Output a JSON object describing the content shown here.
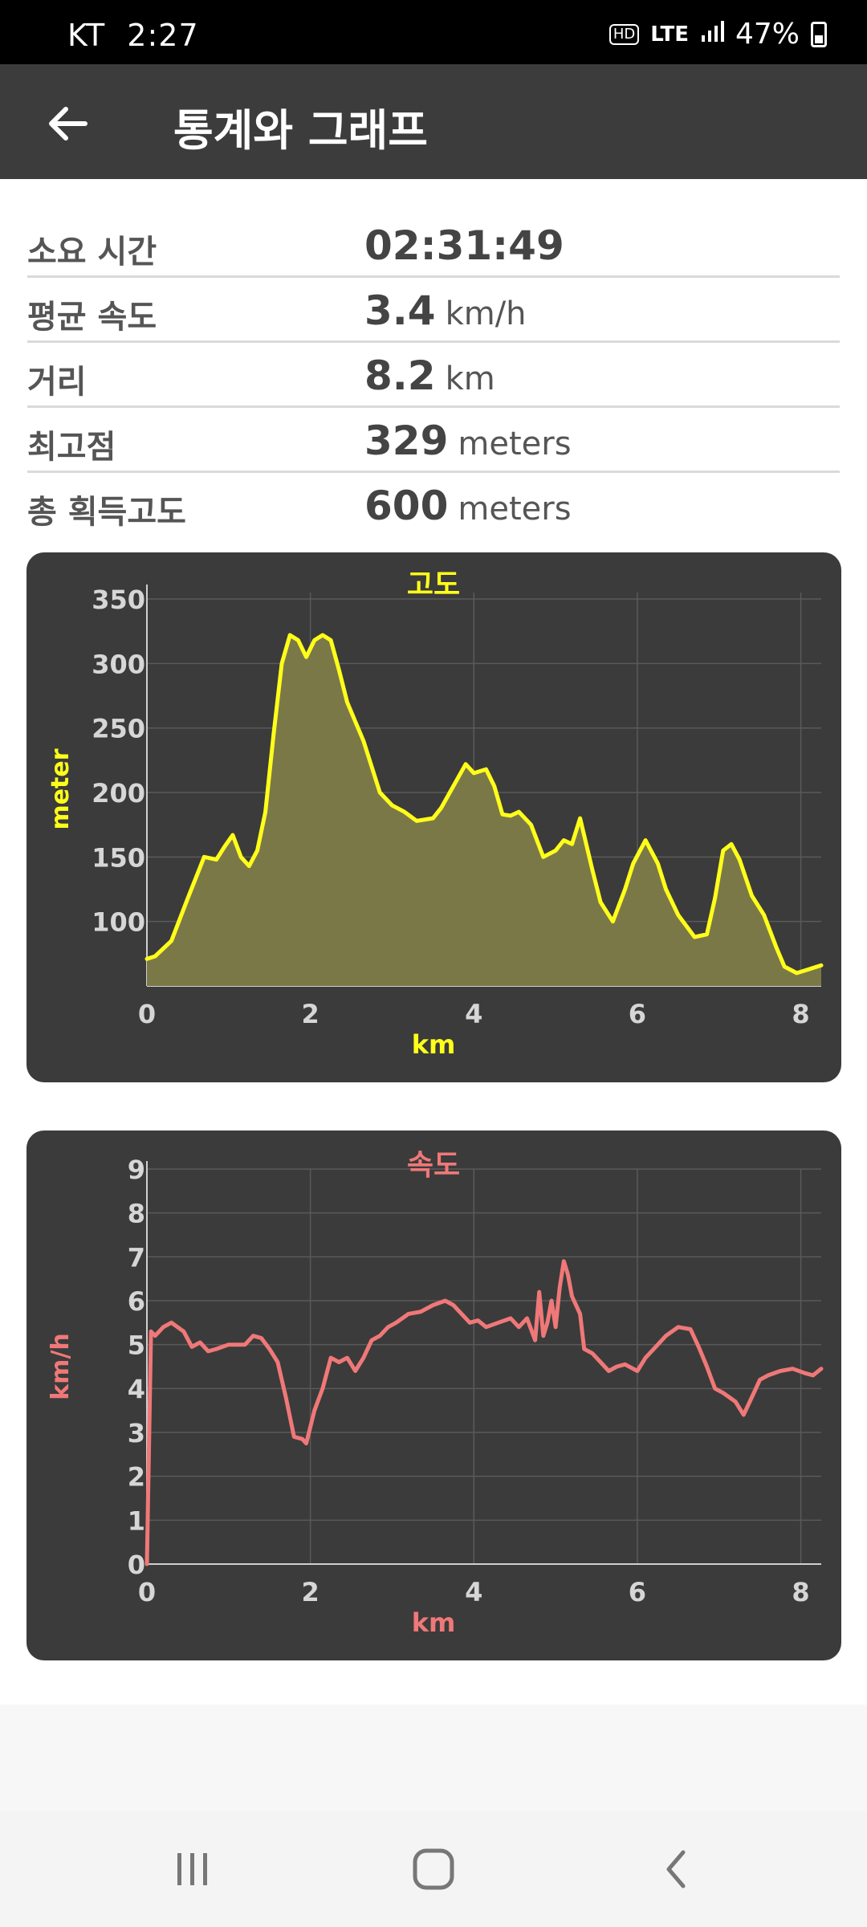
{
  "status_bar": {
    "carrier": "KT",
    "time": "2:27",
    "hd": "HD",
    "network": "LTE",
    "battery": "47%"
  },
  "header": {
    "title": "통계와 그래프"
  },
  "stats": [
    {
      "label": "소요 시간",
      "value": "02:31:49",
      "unit": ""
    },
    {
      "label": "평균 속도",
      "value": "3.4",
      "unit": "km/h"
    },
    {
      "label": "거리",
      "value": "8.2",
      "unit": "km"
    },
    {
      "label": "최고점",
      "value": "329",
      "unit": "meters"
    },
    {
      "label": "총 획득고도",
      "value": "600",
      "unit": "meters"
    }
  ],
  "chart_data": [
    {
      "type": "area",
      "title": "고도",
      "xlabel": "km",
      "ylabel": "meter",
      "xlim": [
        0,
        8.25
      ],
      "ylim": [
        50,
        355
      ],
      "xticks": [
        0,
        2,
        4,
        6,
        8
      ],
      "yticks": [
        100,
        150,
        200,
        250,
        300,
        350
      ],
      "grid": true,
      "color": "#ffff1a",
      "fill": "#7b7848",
      "x": [
        0,
        0.1,
        0.3,
        0.5,
        0.7,
        0.85,
        0.95,
        1.05,
        1.15,
        1.25,
        1.35,
        1.45,
        1.55,
        1.65,
        1.75,
        1.85,
        1.95,
        2.05,
        2.15,
        2.25,
        2.35,
        2.45,
        2.55,
        2.65,
        2.75,
        2.85,
        3.0,
        3.15,
        3.3,
        3.5,
        3.6,
        3.75,
        3.9,
        4.0,
        4.15,
        4.25,
        4.35,
        4.45,
        4.55,
        4.7,
        4.85,
        5.0,
        5.1,
        5.2,
        5.3,
        5.45,
        5.55,
        5.7,
        5.85,
        5.95,
        6.1,
        6.25,
        6.35,
        6.5,
        6.7,
        6.85,
        6.95,
        7.05,
        7.15,
        7.25,
        7.4,
        7.55,
        7.7,
        7.8,
        7.95,
        8.05,
        8.15,
        8.25
      ],
      "y": [
        71,
        73,
        85,
        118,
        150,
        148,
        158,
        167,
        150,
        143,
        155,
        185,
        245,
        300,
        322,
        318,
        305,
        318,
        322,
        318,
        295,
        270,
        255,
        240,
        220,
        200,
        190,
        185,
        178,
        180,
        188,
        205,
        222,
        215,
        218,
        205,
        183,
        182,
        185,
        175,
        150,
        155,
        163,
        160,
        180,
        140,
        115,
        100,
        125,
        145,
        163,
        145,
        125,
        105,
        88,
        90,
        118,
        155,
        160,
        148,
        120,
        105,
        80,
        65,
        60,
        62,
        64,
        66
      ]
    },
    {
      "type": "line",
      "title": "속도",
      "xlabel": "km",
      "ylabel": "km/h",
      "xlim": [
        0,
        8.25
      ],
      "ylim": [
        0,
        9
      ],
      "xticks": [
        0,
        2,
        4,
        6,
        8
      ],
      "yticks": [
        0,
        1,
        2,
        3,
        4,
        5,
        6,
        7,
        8,
        9
      ],
      "grid": true,
      "color": "#f07878",
      "x": [
        0,
        0.05,
        0.1,
        0.2,
        0.3,
        0.45,
        0.55,
        0.65,
        0.75,
        0.85,
        1.0,
        1.1,
        1.2,
        1.3,
        1.4,
        1.5,
        1.6,
        1.7,
        1.8,
        1.9,
        1.95,
        2.05,
        2.15,
        2.25,
        2.35,
        2.45,
        2.55,
        2.65,
        2.75,
        2.85,
        2.95,
        3.05,
        3.2,
        3.35,
        3.5,
        3.65,
        3.75,
        3.85,
        3.95,
        4.05,
        4.15,
        4.3,
        4.45,
        4.55,
        4.65,
        4.75,
        4.8,
        4.85,
        4.9,
        4.95,
        5.0,
        5.05,
        5.1,
        5.15,
        5.2,
        5.3,
        5.35,
        5.45,
        5.55,
        5.65,
        5.75,
        5.85,
        6.0,
        6.1,
        6.25,
        6.35,
        6.5,
        6.65,
        6.75,
        6.85,
        6.95,
        7.05,
        7.2,
        7.3,
        7.4,
        7.5,
        7.6,
        7.75,
        7.9,
        8.05,
        8.15,
        8.25
      ],
      "y": [
        0,
        5.3,
        5.2,
        5.4,
        5.5,
        5.3,
        4.95,
        5.05,
        4.85,
        4.9,
        5.0,
        5.0,
        5.0,
        5.2,
        5.15,
        4.9,
        4.6,
        3.8,
        2.9,
        2.85,
        2.75,
        3.5,
        4.0,
        4.7,
        4.6,
        4.7,
        4.4,
        4.7,
        5.1,
        5.2,
        5.4,
        5.5,
        5.7,
        5.75,
        5.9,
        6.0,
        5.9,
        5.7,
        5.5,
        5.55,
        5.4,
        5.5,
        5.6,
        5.4,
        5.6,
        5.1,
        6.2,
        5.2,
        5.5,
        6.0,
        5.4,
        6.3,
        6.9,
        6.6,
        6.1,
        5.7,
        4.9,
        4.8,
        4.6,
        4.4,
        4.5,
        4.55,
        4.4,
        4.7,
        5.0,
        5.2,
        5.4,
        5.35,
        4.95,
        4.5,
        4.0,
        3.9,
        3.7,
        3.4,
        3.8,
        4.2,
        4.3,
        4.4,
        4.45,
        4.35,
        4.3,
        4.45
      ]
    }
  ]
}
